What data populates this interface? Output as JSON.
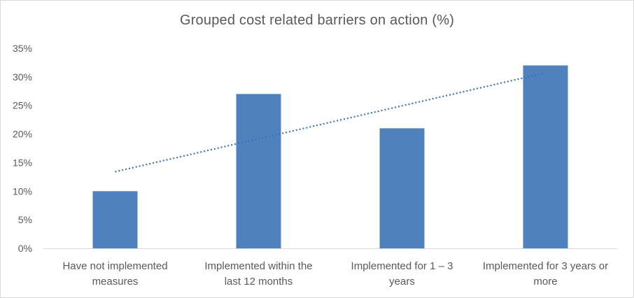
{
  "chart_data": {
    "type": "bar",
    "title": "Grouped cost related barriers on action (%)",
    "categories": [
      [
        "Have not implemented",
        "measures"
      ],
      [
        "Implemented within the",
        "last 12 months"
      ],
      [
        "Implemented for 1 – 3",
        "years"
      ],
      [
        "Implemented for 3 years or",
        "more"
      ]
    ],
    "values": [
      10,
      27,
      21,
      32
    ],
    "yticks": [
      "0%",
      "5%",
      "10%",
      "15%",
      "20%",
      "25%",
      "30%",
      "35%"
    ],
    "ylim": [
      0,
      35
    ],
    "grid": false,
    "trendline": {
      "type": "linear",
      "style": "dotted",
      "start": 13.4,
      "end": 30.7
    },
    "colors": {
      "bar": "#4f81bd",
      "trendline": "#3a73b8",
      "axis": "#d9d9d9",
      "text": "#595959"
    }
  }
}
